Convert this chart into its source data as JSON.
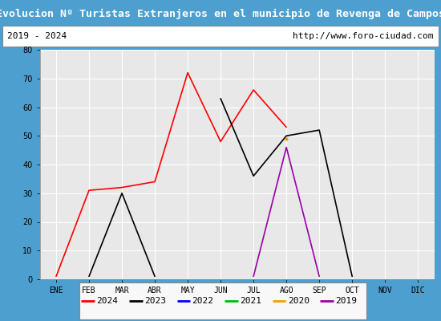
{
  "title": "Evolucion Nº Turistas Extranjeros en el municipio de Revenga de Campos",
  "subtitle_left": "2019 - 2024",
  "subtitle_right": "http://www.foro-ciudad.com",
  "months": [
    "ENE",
    "FEB",
    "MAR",
    "ABR",
    "MAY",
    "JUN",
    "JUL",
    "AGO",
    "SEP",
    "OCT",
    "NOV",
    "DIC"
  ],
  "series": {
    "2024": {
      "color": "#ff0000",
      "data": [
        1,
        31,
        32,
        34,
        72,
        48,
        66,
        53,
        null,
        null,
        null,
        null
      ]
    },
    "2023": {
      "color": "#000000",
      "data": [
        null,
        1,
        30,
        1,
        null,
        63,
        36,
        50,
        52,
        1,
        null,
        null
      ]
    },
    "2022": {
      "color": "#0000ff",
      "data": [
        null,
        null,
        null,
        null,
        null,
        null,
        null,
        null,
        null,
        null,
        null,
        null
      ]
    },
    "2021": {
      "color": "#00bb00",
      "data": [
        null,
        null,
        null,
        null,
        null,
        null,
        null,
        null,
        null,
        null,
        null,
        null
      ]
    },
    "2020": {
      "color": "#ff9900",
      "data": [
        null,
        null,
        null,
        null,
        null,
        null,
        null,
        49,
        null,
        null,
        null,
        null
      ]
    },
    "2019": {
      "color": "#9900aa",
      "data": [
        null,
        null,
        null,
        null,
        null,
        null,
        1,
        46,
        1,
        null,
        null,
        null
      ]
    }
  },
  "ylim": [
    0,
    80
  ],
  "yticks": [
    0,
    10,
    20,
    30,
    40,
    50,
    60,
    70,
    80
  ],
  "title_bg_color": "#4d9fcf",
  "title_fg_color": "#ffffff",
  "subtitle_bg_color": "#ffffff",
  "plot_bg_color": "#e8e8e8",
  "grid_color": "#ffffff",
  "legend_years": [
    "2024",
    "2023",
    "2022",
    "2021",
    "2020",
    "2019"
  ],
  "border_color": "#4d9fcf",
  "outer_bg": "#4d9fcf"
}
